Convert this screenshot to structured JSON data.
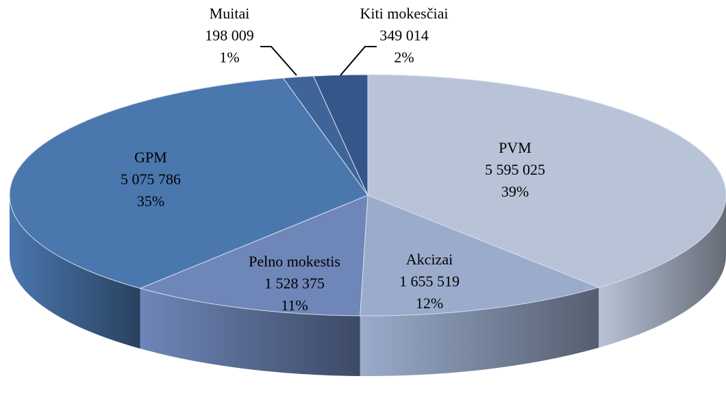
{
  "chart_data": {
    "type": "pie",
    "categories": [
      "PVM",
      "Akcizai",
      "Pelno mokestis",
      "GPM",
      "Muitai",
      "Kiti mokesčiai"
    ],
    "values": [
      5595025,
      1655519,
      1528375,
      5075786,
      198009,
      349014
    ],
    "value_labels": [
      "5 595 025",
      "1 655 519",
      "1 528 375",
      "5 075 786",
      "198 009",
      "349 014"
    ],
    "percent_labels": [
      "39%",
      "12%",
      "11%",
      "35%",
      "1%",
      "2%"
    ],
    "colors": [
      "#b8c3d7",
      "#9aabcb",
      "#6e86b8",
      "#4a77ae",
      "#3f6598",
      "#34568a"
    ]
  }
}
